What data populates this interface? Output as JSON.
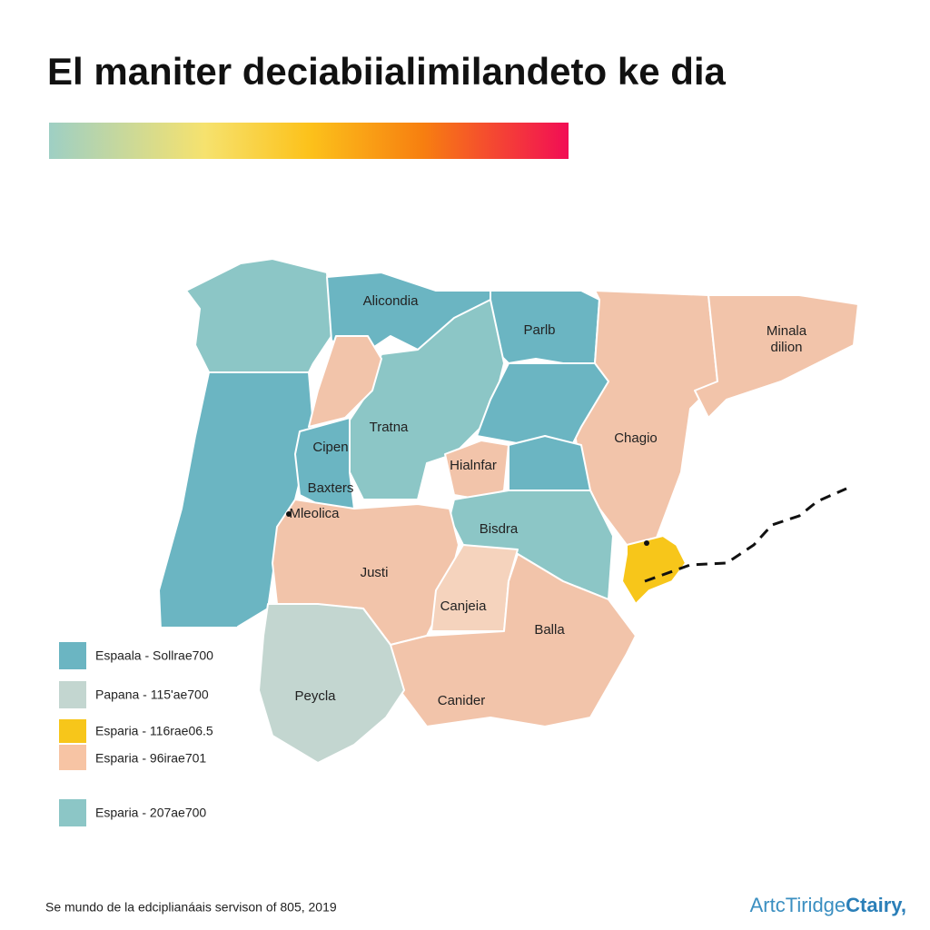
{
  "title": "El maniter deciabiialimilandeto ke dia",
  "regions": [
    {
      "label": "Alicondia"
    },
    {
      "label": "Parlb"
    },
    {
      "label": [
        "Minala",
        "dilion"
      ]
    },
    {
      "label": "Tratna"
    },
    {
      "label": "Chagio"
    },
    {
      "label": "Cipen"
    },
    {
      "label": "Hialnfar"
    },
    {
      "label": "Baxters"
    },
    {
      "label": "Mleolica"
    },
    {
      "label": "Bisdra"
    },
    {
      "label": "Justi"
    },
    {
      "label": "Canjeia"
    },
    {
      "label": "Balla"
    },
    {
      "label": "Peycla"
    },
    {
      "label": "Canider"
    }
  ],
  "legend": [
    {
      "label": "Espaala - Sollrae700"
    },
    {
      "label": "Papana - 115'ae700"
    },
    {
      "label": "Esparia - 116rae06.5"
    },
    {
      "label": "Esparia - 96irae701"
    },
    {
      "label": "Esparia - 207ae700"
    }
  ],
  "footer": "Se mundo de la edciplianáais servison of 805, 2019",
  "brand": [
    "ArtcTiridge",
    "Ctairy,"
  ]
}
